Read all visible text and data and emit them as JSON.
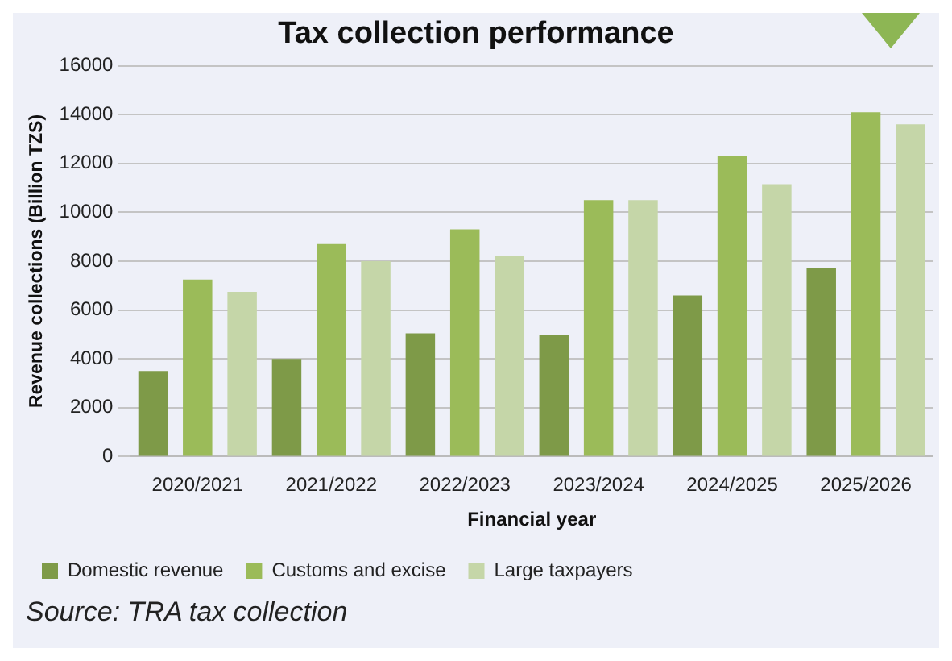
{
  "chart_data": {
    "type": "bar",
    "title": "Tax collection performance",
    "xlabel": "Financial year",
    "ylabel": "Revenue collections (Billion TZS)",
    "categories": [
      "2020/2021",
      "2021/2022",
      "2022/2023",
      "2023/2024",
      "2024/2025",
      "2025/2026"
    ],
    "series": [
      {
        "name": "Domestic revenue",
        "color": "#7e9a48",
        "values": [
          3500,
          4000,
          5050,
          5000,
          6600,
          7700
        ]
      },
      {
        "name": "Customs and excise",
        "color": "#9bbb59",
        "values": [
          7250,
          8700,
          9300,
          10500,
          12300,
          14100
        ]
      },
      {
        "name": "Large taxpayers",
        "color": "#c5d6a8",
        "values": [
          6750,
          8000,
          8200,
          10500,
          11150,
          13600
        ]
      }
    ],
    "ylim": [
      0,
      16000
    ],
    "yticks": [
      0,
      2000,
      4000,
      6000,
      8000,
      10000,
      12000,
      14000,
      16000
    ],
    "grid": "y",
    "legend": "bottom",
    "annotations": [
      "Source: TRA tax collection"
    ]
  }
}
